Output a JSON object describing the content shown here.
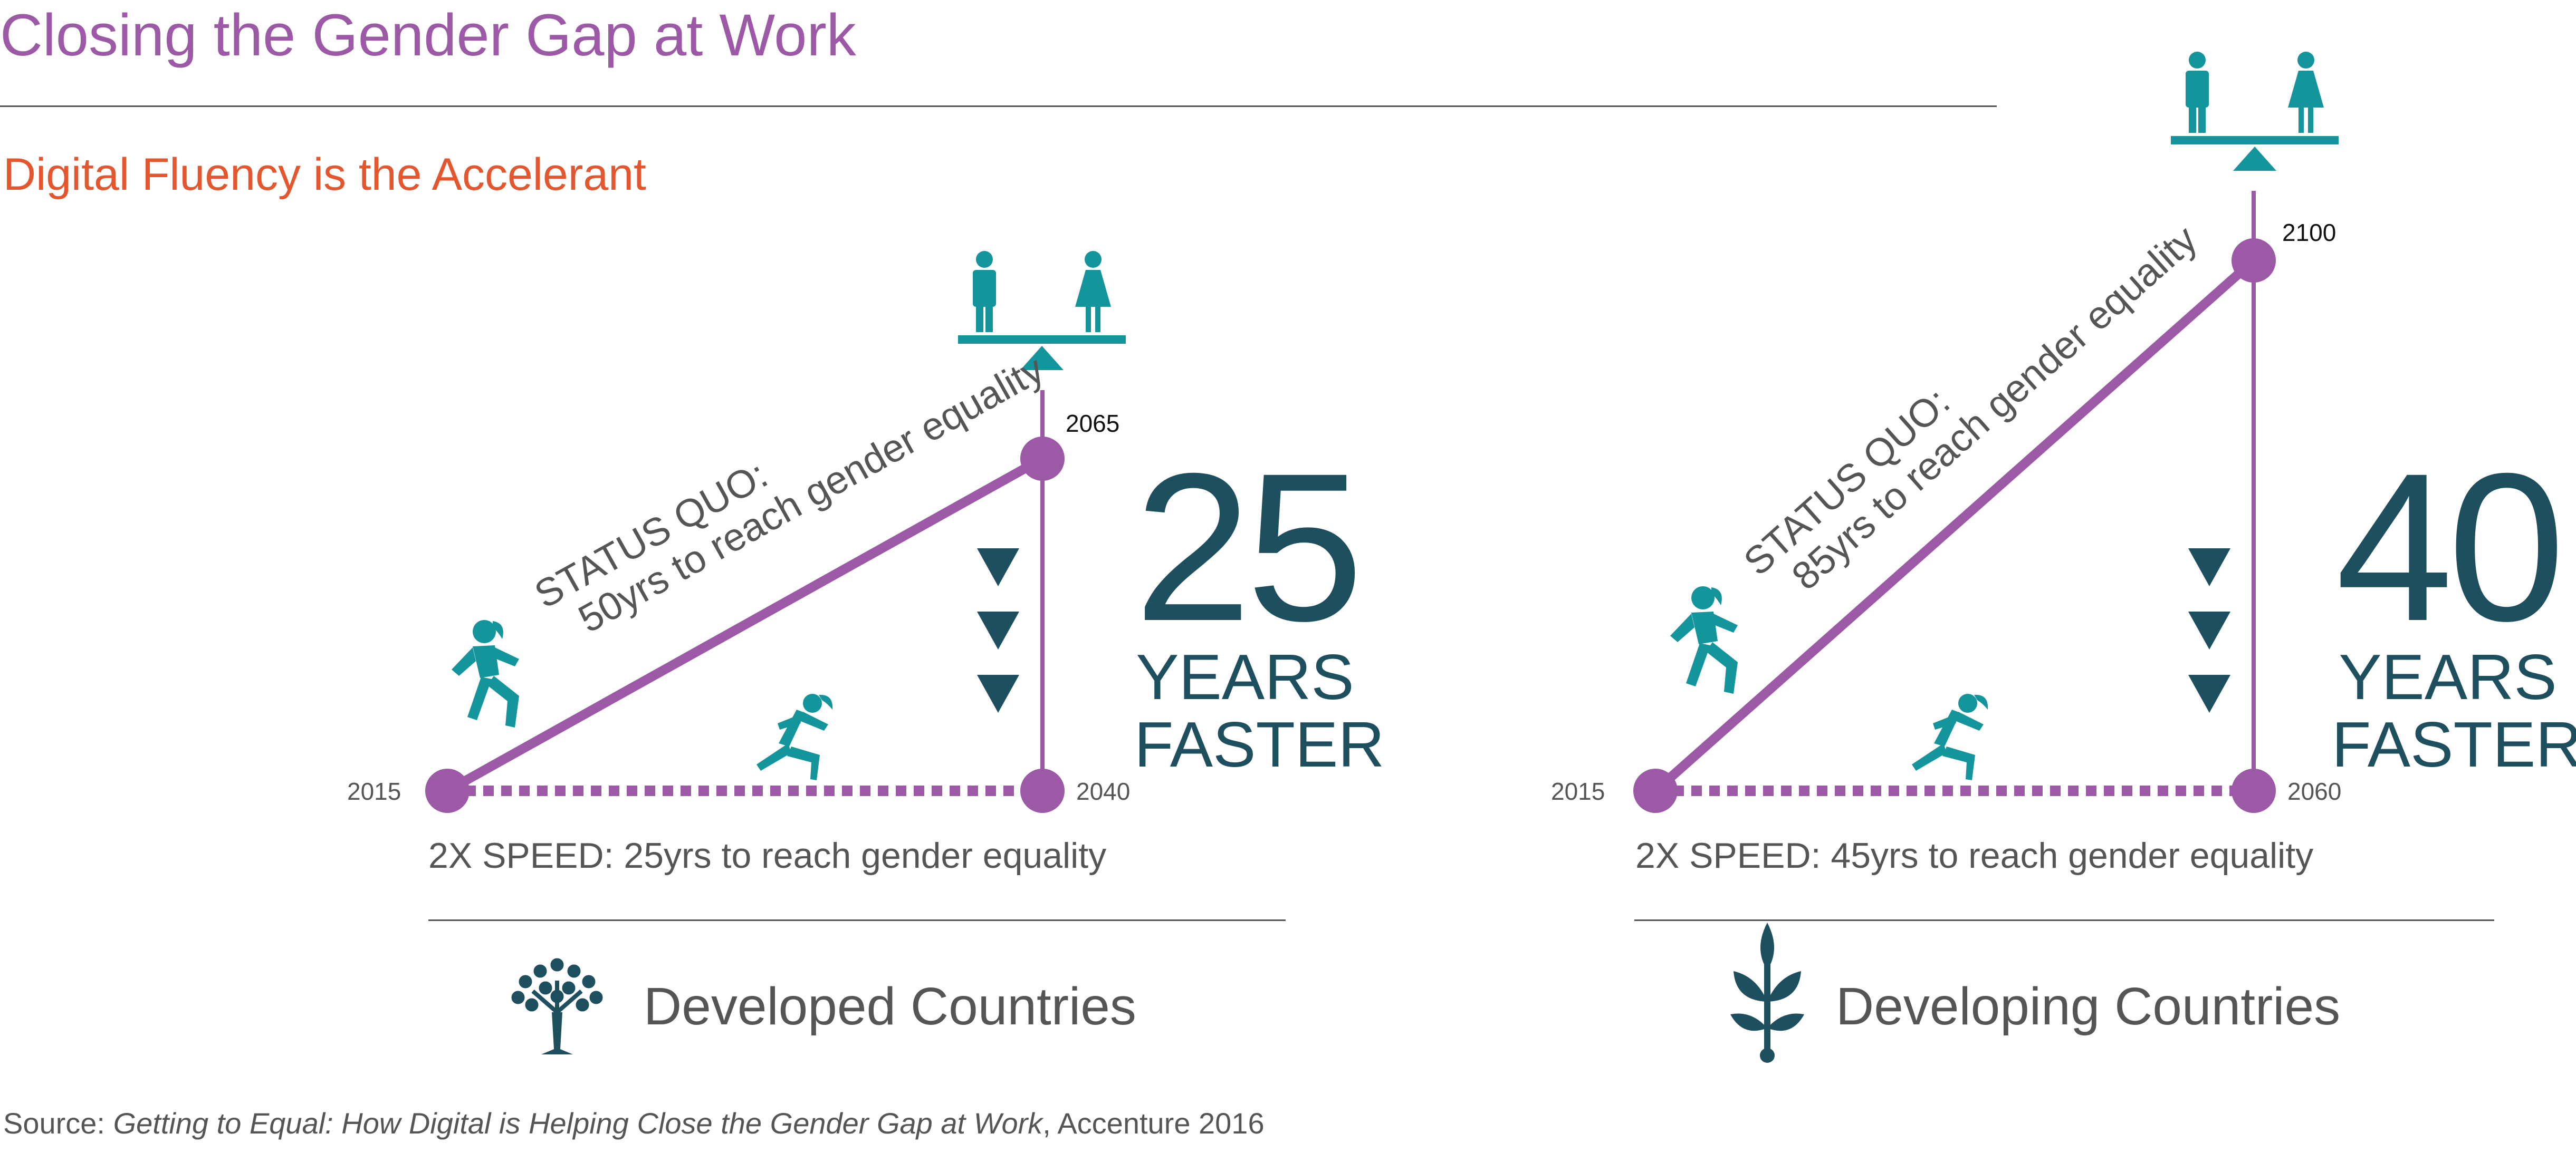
{
  "header": {
    "title": "Closing the Gender Gap at Work",
    "subtitle": "Digital Fluency is the Accelerant"
  },
  "panels": [
    {
      "status_quo_line1": "STATUS QUO:",
      "status_quo_line2": "50yrs to reach gender equality",
      "speed_text": "2X SPEED: 25yrs to reach gender equality",
      "start_year": "2015",
      "speed_year": "2040",
      "status_year": "2065",
      "years_faster_number": "25",
      "years_label": "YEARS",
      "faster_label": "FASTER",
      "country_label": "Developed Countries",
      "icon": "tree-icon"
    },
    {
      "status_quo_line1": "STATUS QUO:",
      "status_quo_line2": "85yrs to reach gender equality",
      "speed_text": "2X SPEED: 45yrs to reach gender equality",
      "start_year": "2015",
      "speed_year": "2060",
      "status_year": "2100",
      "years_faster_number": "40",
      "years_label": "YEARS",
      "faster_label": "FASTER",
      "country_label": "Developing Countries",
      "icon": "sprout-icon"
    }
  ],
  "source": {
    "prefix": "Source: ",
    "title": "Getting to Equal: How Digital is Helping Close the Gender Gap at Work",
    "suffix": ", Accenture 2016"
  },
  "colors": {
    "title": "#9b59a6",
    "subtitle": "#e4572e",
    "line": "#9b59a6",
    "teal": "#14959b",
    "navy": "#1e4f5e",
    "text": "#555555"
  }
}
